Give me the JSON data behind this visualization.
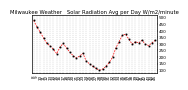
{
  "title": "Milwaukee Weather   Solar Radiation Avg per Day W/m2/minute",
  "x_values": [
    8,
    9,
    10,
    11,
    12,
    13,
    14,
    15,
    16,
    17,
    18,
    19,
    20,
    21,
    22,
    23,
    24,
    25,
    26,
    27,
    28,
    29,
    30,
    31,
    32,
    33,
    34,
    35,
    36,
    37,
    38,
    39,
    40,
    41,
    42,
    43,
    44,
    45
  ],
  "x_labels": [
    "8",
    "9",
    "10",
    "11",
    "12",
    "13",
    "14",
    "15",
    "16",
    "17",
    "18",
    "19",
    "20",
    "21",
    "22",
    "23",
    "24",
    "25",
    "26",
    "27",
    "28",
    "29",
    "30",
    "31",
    "32",
    "33",
    "34",
    "35",
    "36",
    "37",
    "38",
    "39",
    "40",
    "41",
    "42",
    "43",
    "44",
    "45"
  ],
  "y_values": [
    480,
    430,
    390,
    345,
    305,
    285,
    260,
    225,
    275,
    305,
    268,
    238,
    210,
    192,
    208,
    228,
    168,
    148,
    128,
    112,
    98,
    108,
    128,
    158,
    198,
    268,
    318,
    365,
    375,
    335,
    298,
    318,
    308,
    328,
    298,
    288,
    308,
    328
  ],
  "line_color": "#FF0000",
  "marker_color": "#000000",
  "grid_color": "#BBBBBB",
  "background_color": "#FFFFFF",
  "ylim": [
    80,
    520
  ],
  "y_ticks": [
    100,
    150,
    200,
    250,
    300,
    350,
    400,
    450,
    500
  ],
  "title_fontsize": 3.8,
  "tick_fontsize": 3.0
}
